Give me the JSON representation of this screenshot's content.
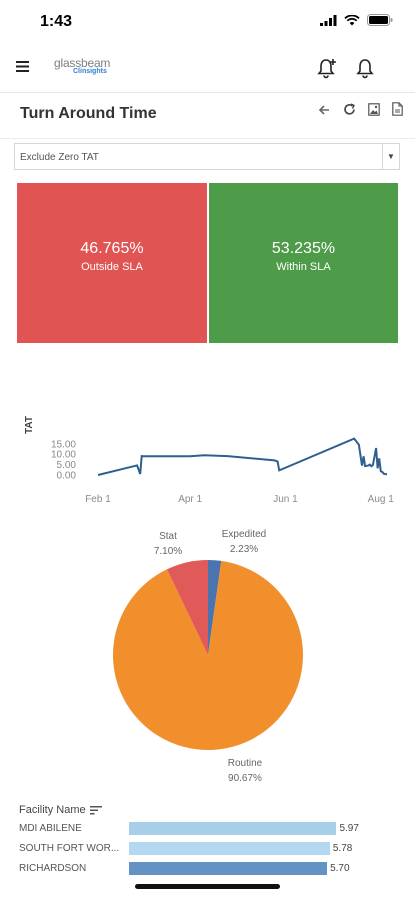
{
  "status_bar": {
    "time": "1:43"
  },
  "app_bar": {
    "logo_main": "glassbeam",
    "logo_sub": "Clinsights"
  },
  "page": {
    "title": "Turn Around Time"
  },
  "filter": {
    "selected": "Exclude Zero TAT"
  },
  "kpis": [
    {
      "value": "46.765%",
      "label": "Outside SLA",
      "color": "#e05454"
    },
    {
      "value": "53.235%",
      "label": "Within SLA",
      "color": "#4e9c4a"
    }
  ],
  "chart_data": [
    {
      "type": "line",
      "ylabel": "TAT",
      "y_ticks": [
        "0.00",
        "5.00",
        "10.00",
        "15.00"
      ],
      "x_ticks": [
        "Feb 1",
        "Apr 1",
        "Jun 1",
        "Aug 1"
      ],
      "ylim": [
        0,
        18
      ],
      "grid": false,
      "color": "#2e5f91",
      "series": [
        {
          "x": [
            "2023-02-01",
            "2023-02-26",
            "2023-02-28",
            "2023-03-01",
            "2023-03-02",
            "2023-04-01",
            "2023-04-10",
            "2023-04-25",
            "2023-05-25",
            "2023-05-27",
            "2023-05-28",
            "2023-07-15",
            "2023-07-18",
            "2023-07-20",
            "2023-07-21",
            "2023-07-22",
            "2023-07-24",
            "2023-07-25",
            "2023-07-26",
            "2023-07-27",
            "2023-07-29",
            "2023-07-30",
            "2023-07-31",
            "2023-08-01",
            "2023-08-02",
            "2023-08-03",
            "2023-08-05"
          ],
          "y": [
            0,
            4.6,
            0.5,
            9.1,
            9.0,
            9.0,
            9.5,
            9.1,
            7.0,
            6.5,
            2.2,
            17.5,
            14.5,
            4.5,
            9.0,
            4.3,
            4.5,
            5.0,
            4.2,
            4.8,
            13.0,
            3.2,
            8.0,
            1.8,
            1.5,
            0.6,
            0.3
          ]
        }
      ]
    },
    {
      "type": "pie",
      "slices": [
        {
          "name": "Expedited",
          "value": 2.23,
          "label": "2.23%",
          "color": "#4a74ad"
        },
        {
          "name": "Routine",
          "value": 90.67,
          "label": "90.67%",
          "color": "#f18f2c"
        },
        {
          "name": "Stat",
          "value": 7.1,
          "label": "7.10%",
          "color": "#e05a59"
        }
      ]
    },
    {
      "type": "bar",
      "orientation": "horizontal",
      "xlabel": "Facility Name",
      "categories": [
        "MDI ABILENE",
        "SOUTH FORT WOR...",
        "RICHARDSON"
      ],
      "values": [
        5.97,
        5.78,
        5.7
      ],
      "value_labels": [
        "5.97",
        "5.78",
        "5.70"
      ],
      "colors": [
        "#a7cfea",
        "#b3d8ef",
        "#6393c2"
      ]
    }
  ]
}
